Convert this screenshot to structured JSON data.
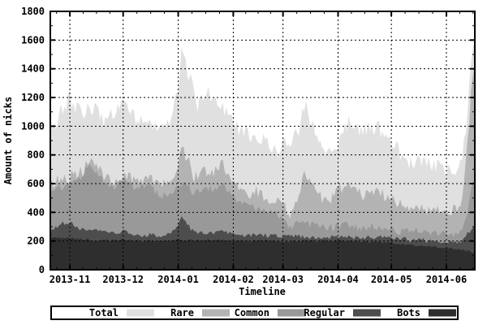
{
  "chart": {
    "y_axis_label": "Amount of nicks",
    "x_axis_label": "Timeline",
    "background": "#ffffff",
    "border_color": "#000000",
    "legend": [
      {
        "label": "Total",
        "color": "#e0e0e0"
      },
      {
        "label": "Rare",
        "color": "#b3b3b3"
      },
      {
        "label": "Common",
        "color": "#999999"
      },
      {
        "label": "Regular",
        "color": "#4d4d4d"
      },
      {
        "label": "Bots",
        "color": "#2e2e2e"
      }
    ]
  },
  "chart_data": {
    "type": "area",
    "title": "",
    "xlabel": "Timeline",
    "ylabel": "Amount of nicks",
    "ylim": [
      0,
      1800
    ],
    "y_ticks": [
      0,
      200,
      400,
      600,
      800,
      1000,
      1200,
      1400,
      1600,
      1800
    ],
    "grid": true,
    "legend_position": "bottom",
    "x_unit": "day index across plotted range (0 = left area start, ~2013-10-25)",
    "x_domain": [
      -2,
      237
    ],
    "month_ticks": [
      {
        "label": "2013-11",
        "day": 9
      },
      {
        "label": "2013-12",
        "day": 39
      },
      {
        "label": "2014-01",
        "day": 70
      },
      {
        "label": "2014-02",
        "day": 101
      },
      {
        "label": "2014-03",
        "day": 129
      },
      {
        "label": "2014-04",
        "day": 160
      },
      {
        "label": "2014-05",
        "day": 190
      },
      {
        "label": "2014-06",
        "day": 221
      }
    ],
    "note": "Layered filled curves (gnuplot style), drawn back to front; each series value is the top of its filled band (cumulative nick counts read from the chart).",
    "series": [
      {
        "name": "Total",
        "color": "#e0e0e0",
        "points": [
          [
            -2,
            1030
          ],
          [
            0,
            1040
          ],
          [
            4,
            1140
          ],
          [
            9,
            1225
          ],
          [
            12,
            1150
          ],
          [
            16,
            1120
          ],
          [
            20,
            1180
          ],
          [
            23,
            1140
          ],
          [
            26,
            1090
          ],
          [
            28,
            1060
          ],
          [
            33,
            1100
          ],
          [
            39,
            1230
          ],
          [
            43,
            1150
          ],
          [
            46,
            1060
          ],
          [
            53,
            1110
          ],
          [
            58,
            980
          ],
          [
            63,
            1010
          ],
          [
            66,
            1060
          ],
          [
            70,
            1260
          ],
          [
            72,
            1530
          ],
          [
            74,
            1470
          ],
          [
            77,
            1350
          ],
          [
            79,
            1220
          ],
          [
            81,
            1140
          ],
          [
            84,
            1230
          ],
          [
            87,
            1270
          ],
          [
            91,
            1210
          ],
          [
            94,
            1150
          ],
          [
            101,
            1050
          ],
          [
            105,
            1000
          ],
          [
            110,
            950
          ],
          [
            115,
            965
          ],
          [
            120,
            900
          ],
          [
            125,
            860
          ],
          [
            129,
            885
          ],
          [
            133,
            920
          ],
          [
            138,
            1010
          ],
          [
            141,
            1185
          ],
          [
            144,
            1090
          ],
          [
            148,
            965
          ],
          [
            150,
            930
          ],
          [
            153,
            870
          ],
          [
            160,
            915
          ],
          [
            164,
            1000
          ],
          [
            167,
            1065
          ],
          [
            171,
            1015
          ],
          [
            174,
            980
          ],
          [
            179,
            1030
          ],
          [
            184,
            1000
          ],
          [
            190,
            940
          ],
          [
            194,
            855
          ],
          [
            197,
            795
          ],
          [
            201,
            765
          ],
          [
            204,
            785
          ],
          [
            209,
            750
          ],
          [
            214,
            740
          ],
          [
            221,
            735
          ],
          [
            225,
            720
          ],
          [
            228,
            755
          ],
          [
            230,
            810
          ],
          [
            233,
            1100
          ],
          [
            235,
            1450
          ],
          [
            237,
            1700
          ]
        ]
      },
      {
        "name": "Rare",
        "color": "#b3b3b3",
        "points": [
          [
            -2,
            615
          ],
          [
            0,
            620
          ],
          [
            4,
            650
          ],
          [
            9,
            665
          ],
          [
            16,
            710
          ],
          [
            20,
            780
          ],
          [
            26,
            700
          ],
          [
            33,
            645
          ],
          [
            39,
            690
          ],
          [
            46,
            645
          ],
          [
            53,
            655
          ],
          [
            60,
            605
          ],
          [
            66,
            645
          ],
          [
            70,
            730
          ],
          [
            72,
            865
          ],
          [
            75,
            800
          ],
          [
            79,
            650
          ],
          [
            84,
            705
          ],
          [
            89,
            690
          ],
          [
            95,
            748
          ],
          [
            101,
            605
          ],
          [
            105,
            565
          ],
          [
            110,
            540
          ],
          [
            115,
            560
          ],
          [
            120,
            520
          ],
          [
            125,
            500
          ],
          [
            129,
            465
          ],
          [
            133,
            415
          ],
          [
            138,
            525
          ],
          [
            141,
            700
          ],
          [
            144,
            645
          ],
          [
            148,
            565
          ],
          [
            153,
            485
          ],
          [
            160,
            565
          ],
          [
            164,
            610
          ],
          [
            169,
            560
          ],
          [
            174,
            545
          ],
          [
            179,
            578
          ],
          [
            184,
            545
          ],
          [
            190,
            505
          ],
          [
            194,
            475
          ],
          [
            199,
            452
          ],
          [
            204,
            462
          ],
          [
            209,
            440
          ],
          [
            214,
            452
          ],
          [
            221,
            442
          ],
          [
            225,
            430
          ],
          [
            228,
            452
          ],
          [
            230,
            505
          ],
          [
            233,
            900
          ],
          [
            235,
            1250
          ],
          [
            237,
            1480
          ]
        ]
      },
      {
        "name": "Common",
        "color": "#999999",
        "points": [
          [
            -2,
            552
          ],
          [
            0,
            558
          ],
          [
            4,
            585
          ],
          [
            9,
            605
          ],
          [
            16,
            660
          ],
          [
            20,
            750
          ],
          [
            23,
            705
          ],
          [
            26,
            645
          ],
          [
            30,
            605
          ],
          [
            34,
            582
          ],
          [
            39,
            640
          ],
          [
            43,
            602
          ],
          [
            48,
            582
          ],
          [
            53,
            600
          ],
          [
            58,
            542
          ],
          [
            63,
            522
          ],
          [
            67,
            560
          ],
          [
            70,
            582
          ],
          [
            72,
            622
          ],
          [
            75,
            600
          ],
          [
            79,
            542
          ],
          [
            83,
            562
          ],
          [
            87,
            582
          ],
          [
            91,
            562
          ],
          [
            95,
            600
          ],
          [
            101,
            522
          ],
          [
            105,
            482
          ],
          [
            110,
            452
          ],
          [
            115,
            442
          ],
          [
            120,
            422
          ],
          [
            125,
            400
          ],
          [
            129,
            362
          ],
          [
            133,
            312
          ],
          [
            138,
            332
          ],
          [
            141,
            347
          ],
          [
            144,
            330
          ],
          [
            148,
            312
          ],
          [
            153,
            300
          ],
          [
            160,
            312
          ],
          [
            164,
            330
          ],
          [
            169,
            310
          ],
          [
            174,
            302
          ],
          [
            179,
            312
          ],
          [
            184,
            302
          ],
          [
            190,
            292
          ],
          [
            194,
            282
          ],
          [
            199,
            276
          ],
          [
            204,
            281
          ],
          [
            209,
            271
          ],
          [
            214,
            271
          ],
          [
            221,
            266
          ],
          [
            225,
            261
          ],
          [
            228,
            266
          ],
          [
            230,
            281
          ],
          [
            233,
            420
          ],
          [
            235,
            600
          ],
          [
            237,
            620
          ]
        ]
      },
      {
        "name": "Regular",
        "color": "#4d4d4d",
        "points": [
          [
            -2,
            288
          ],
          [
            0,
            292
          ],
          [
            4,
            322
          ],
          [
            9,
            342
          ],
          [
            13,
            302
          ],
          [
            20,
            272
          ],
          [
            23,
            292
          ],
          [
            28,
            281
          ],
          [
            33,
            262
          ],
          [
            39,
            272
          ],
          [
            43,
            257
          ],
          [
            48,
            242
          ],
          [
            53,
            252
          ],
          [
            60,
            241
          ],
          [
            66,
            262
          ],
          [
            70,
            302
          ],
          [
            72,
            372
          ],
          [
            75,
            322
          ],
          [
            79,
            262
          ],
          [
            84,
            272
          ],
          [
            89,
            262
          ],
          [
            94,
            272
          ],
          [
            101,
            252
          ],
          [
            105,
            247
          ],
          [
            110,
            242
          ],
          [
            115,
            252
          ],
          [
            120,
            242
          ],
          [
            129,
            237
          ],
          [
            138,
            242
          ],
          [
            143,
            232
          ],
          [
            148,
            227
          ],
          [
            160,
            232
          ],
          [
            164,
            237
          ],
          [
            171,
            227
          ],
          [
            179,
            232
          ],
          [
            190,
            227
          ],
          [
            199,
            217
          ],
          [
            209,
            212
          ],
          [
            221,
            202
          ],
          [
            228,
            197
          ],
          [
            230,
            202
          ],
          [
            233,
            262
          ],
          [
            235,
            292
          ],
          [
            237,
            312
          ]
        ]
      },
      {
        "name": "Bots",
        "color": "#2e2e2e",
        "points": [
          [
            -2,
            228
          ],
          [
            0,
            227
          ],
          [
            9,
            221
          ],
          [
            20,
            211
          ],
          [
            28,
            206
          ],
          [
            39,
            211
          ],
          [
            48,
            206
          ],
          [
            58,
            201
          ],
          [
            70,
            211
          ],
          [
            79,
            206
          ],
          [
            89,
            211
          ],
          [
            101,
            206
          ],
          [
            110,
            201
          ],
          [
            120,
            206
          ],
          [
            129,
            201
          ],
          [
            138,
            206
          ],
          [
            148,
            201
          ],
          [
            160,
            206
          ],
          [
            169,
            201
          ],
          [
            179,
            196
          ],
          [
            190,
            191
          ],
          [
            199,
            176
          ],
          [
            209,
            166
          ],
          [
            221,
            156
          ],
          [
            225,
            151
          ],
          [
            230,
            141
          ],
          [
            233,
            131
          ],
          [
            235,
            126
          ],
          [
            237,
            121
          ]
        ]
      }
    ]
  }
}
